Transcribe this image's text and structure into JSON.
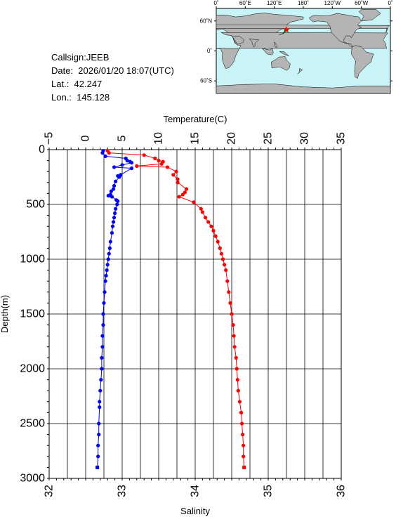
{
  "info": {
    "callsign": "Callsign:JEEB",
    "date": "Date:  2026/01/20 18:07(UTC)",
    "lat": "Lat.:  42.247",
    "lon": "Lon.:  145.128"
  },
  "map": {
    "lon_labels": [
      "0˚",
      "60˚E",
      "120˚E",
      "180˚",
      "120˚W",
      "60˚W",
      "0˚"
    ],
    "lat_labels": [
      "60˚N",
      "0˚",
      "60˚S"
    ],
    "ocean_color": "#c8f4f8",
    "land_color": "#b4b4b4",
    "marker": {
      "lon": 145.128,
      "lat": 42.247,
      "color": "#ff0000",
      "icon": "star-icon"
    }
  },
  "chart_data": {
    "type": "scatter",
    "title": "",
    "temperature_axis": {
      "label": "Temperature(C)",
      "range": [
        -5,
        35
      ],
      "ticks": [
        "−5",
        "0",
        "5",
        "10",
        "15",
        "20",
        "25",
        "30",
        "35"
      ]
    },
    "salinity_axis": {
      "label": "Salinity",
      "range": [
        32,
        36
      ],
      "ticks": [
        "32",
        "33",
        "34",
        "35",
        "36"
      ]
    },
    "depth_axis": {
      "label": "Depth(m)",
      "range": [
        0,
        3000
      ],
      "ticks": [
        "0",
        "500",
        "1000",
        "1500",
        "2000",
        "2500",
        "3000"
      ]
    },
    "grid": true,
    "series": [
      {
        "color": "#0000ff",
        "axis": "temperature",
        "points": [
          [
            2.4,
            10
          ],
          [
            2.3,
            30
          ],
          [
            2.7,
            60
          ],
          [
            5.5,
            80
          ],
          [
            5.7,
            100
          ],
          [
            6.1,
            110
          ],
          [
            6.3,
            120
          ],
          [
            5.0,
            140
          ],
          [
            3.9,
            160
          ],
          [
            6.3,
            170
          ],
          [
            4.8,
            230
          ],
          [
            4.4,
            240
          ],
          [
            4.6,
            250
          ],
          [
            4.1,
            290
          ],
          [
            3.9,
            330
          ],
          [
            3.8,
            360
          ],
          [
            3.5,
            380
          ],
          [
            3.4,
            410
          ],
          [
            3.4,
            420
          ],
          [
            3.1,
            420
          ],
          [
            3.6,
            430
          ],
          [
            4.2,
            460
          ],
          [
            4.4,
            470
          ],
          [
            4.3,
            500
          ],
          [
            4.1,
            540
          ],
          [
            4.0,
            580
          ],
          [
            3.9,
            620
          ],
          [
            3.8,
            660
          ],
          [
            3.7,
            700
          ],
          [
            3.6,
            760
          ],
          [
            3.4,
            840
          ],
          [
            3.3,
            900
          ],
          [
            3.2,
            950
          ],
          [
            3.1,
            1000
          ],
          [
            3.0,
            1050
          ],
          [
            2.9,
            1100
          ],
          [
            2.8,
            1150
          ],
          [
            2.7,
            1200
          ],
          [
            2.6,
            1300
          ],
          [
            2.5,
            1400
          ],
          [
            2.4,
            1500
          ],
          [
            2.4,
            1600
          ],
          [
            2.3,
            1700
          ],
          [
            2.3,
            1800
          ],
          [
            2.2,
            1900
          ],
          [
            2.2,
            2000
          ],
          [
            2.1,
            2100
          ],
          [
            2.0,
            2200
          ],
          [
            1.9,
            2300
          ],
          [
            1.9,
            2350
          ],
          [
            1.8,
            2500
          ],
          [
            1.8,
            2600
          ],
          [
            1.7,
            2700
          ],
          [
            1.7,
            2800
          ],
          [
            1.6,
            2900
          ]
        ]
      },
      {
        "color": "#ff0000",
        "axis": "salinity",
        "points": [
          [
            32.8,
            10
          ],
          [
            32.82,
            30
          ],
          [
            33.3,
            50
          ],
          [
            33.45,
            80
          ],
          [
            33.5,
            100
          ],
          [
            33.56,
            110
          ],
          [
            33.54,
            130
          ],
          [
            33.2,
            150
          ],
          [
            33.62,
            160
          ],
          [
            33.74,
            200
          ],
          [
            33.7,
            230
          ],
          [
            33.76,
            270
          ],
          [
            33.76,
            300
          ],
          [
            33.88,
            360
          ],
          [
            33.86,
            390
          ],
          [
            33.83,
            410
          ],
          [
            33.78,
            430
          ],
          [
            33.98,
            480
          ],
          [
            34.08,
            540
          ],
          [
            34.1,
            570
          ],
          [
            34.14,
            620
          ],
          [
            34.18,
            660
          ],
          [
            34.22,
            700
          ],
          [
            34.25,
            740
          ],
          [
            34.28,
            790
          ],
          [
            34.31,
            840
          ],
          [
            34.34,
            900
          ],
          [
            34.36,
            950
          ],
          [
            34.38,
            1000
          ],
          [
            34.4,
            1050
          ],
          [
            34.42,
            1100
          ],
          [
            34.44,
            1200
          ],
          [
            34.46,
            1300
          ],
          [
            34.48,
            1400
          ],
          [
            34.5,
            1500
          ],
          [
            34.52,
            1600
          ],
          [
            34.53,
            1700
          ],
          [
            34.54,
            1800
          ],
          [
            34.56,
            1900
          ],
          [
            34.57,
            2000
          ],
          [
            34.58,
            2100
          ],
          [
            34.59,
            2200
          ],
          [
            34.61,
            2300
          ],
          [
            34.63,
            2400
          ],
          [
            34.64,
            2500
          ],
          [
            34.65,
            2600
          ],
          [
            34.66,
            2700
          ],
          [
            34.66,
            2800
          ],
          [
            34.67,
            2900
          ]
        ]
      }
    ]
  }
}
